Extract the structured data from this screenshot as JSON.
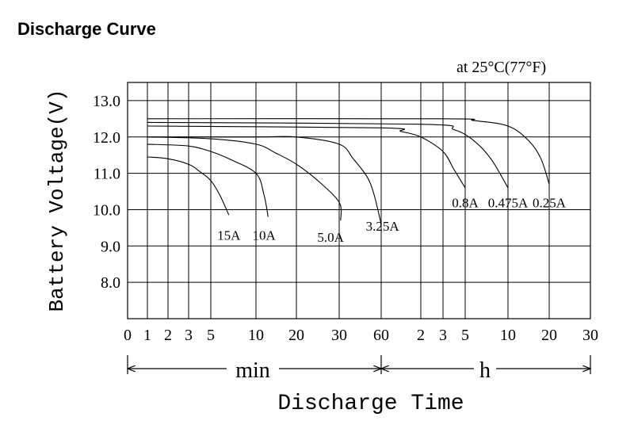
{
  "page_title": "Discharge Curve",
  "chart_data": {
    "type": "line",
    "note": "at 25°C(77°F)",
    "ylabel": "Battery Voltage(V)",
    "xlabel": "Discharge Time",
    "yticks": [
      "8.0",
      "9.0",
      "10.0",
      "11.0",
      "12.0",
      "13.0"
    ],
    "ylim": [
      7.0,
      13.5
    ],
    "xticks_min": [
      "0",
      "1",
      "2",
      "3",
      "5",
      "10",
      "20",
      "30",
      "60"
    ],
    "xticks_h": [
      "2",
      "3",
      "5",
      "10",
      "20",
      "30"
    ],
    "xunit_min": "min",
    "xunit_h": "h",
    "grid": true,
    "series": [
      {
        "name": "15A",
        "label_at": [
          7,
          9.3
        ],
        "points": [
          [
            1,
            11.45
          ],
          [
            2,
            11.4
          ],
          [
            3,
            11.25
          ],
          [
            4,
            11.05
          ],
          [
            5,
            10.8
          ],
          [
            6,
            10.4
          ],
          [
            7,
            9.85
          ]
        ]
      },
      {
        "name": "10A",
        "label_at": [
          12,
          9.3
        ],
        "points": [
          [
            1,
            11.8
          ],
          [
            3,
            11.75
          ],
          [
            5,
            11.6
          ],
          [
            7,
            11.4
          ],
          [
            10,
            11.0
          ],
          [
            12,
            10.4
          ],
          [
            13,
            9.8
          ]
        ]
      },
      {
        "name": "5.0A",
        "label_at": [
          28,
          9.25
        ],
        "points": [
          [
            1,
            12.0
          ],
          [
            5,
            11.95
          ],
          [
            10,
            11.8
          ],
          [
            15,
            11.55
          ],
          [
            20,
            11.25
          ],
          [
            25,
            10.8
          ],
          [
            30,
            10.2
          ],
          [
            31,
            9.7
          ]
        ]
      },
      {
        "name": "3.25A",
        "label_at": [
          62,
          9.55
        ],
        "points": [
          [
            1,
            12.0
          ],
          [
            10,
            12.0
          ],
          [
            20,
            12.0
          ],
          [
            30,
            11.8
          ],
          [
            40,
            11.4
          ],
          [
            50,
            10.9
          ],
          [
            55,
            10.4
          ],
          [
            60,
            9.6
          ]
        ]
      },
      {
        "name": "0.8A",
        "label_at": [
          300,
          10.2
        ],
        "points": [
          [
            1,
            12.3
          ],
          [
            60,
            12.25
          ],
          [
            90,
            12.15
          ],
          [
            120,
            12.0
          ],
          [
            180,
            11.6
          ],
          [
            240,
            11.1
          ],
          [
            300,
            10.6
          ]
        ]
      },
      {
        "name": "0.475A",
        "label_at": [
          600,
          10.2
        ],
        "points": [
          [
            1,
            12.4
          ],
          [
            120,
            12.35
          ],
          [
            240,
            12.2
          ],
          [
            360,
            11.9
          ],
          [
            480,
            11.4
          ],
          [
            600,
            10.6
          ]
        ]
      },
      {
        "name": "0.25A",
        "label_at": [
          1200,
          10.2
        ],
        "points": [
          [
            1,
            12.5
          ],
          [
            180,
            12.5
          ],
          [
            360,
            12.45
          ],
          [
            600,
            12.3
          ],
          [
            900,
            11.9
          ],
          [
            1080,
            11.4
          ],
          [
            1200,
            10.7
          ]
        ]
      }
    ]
  }
}
